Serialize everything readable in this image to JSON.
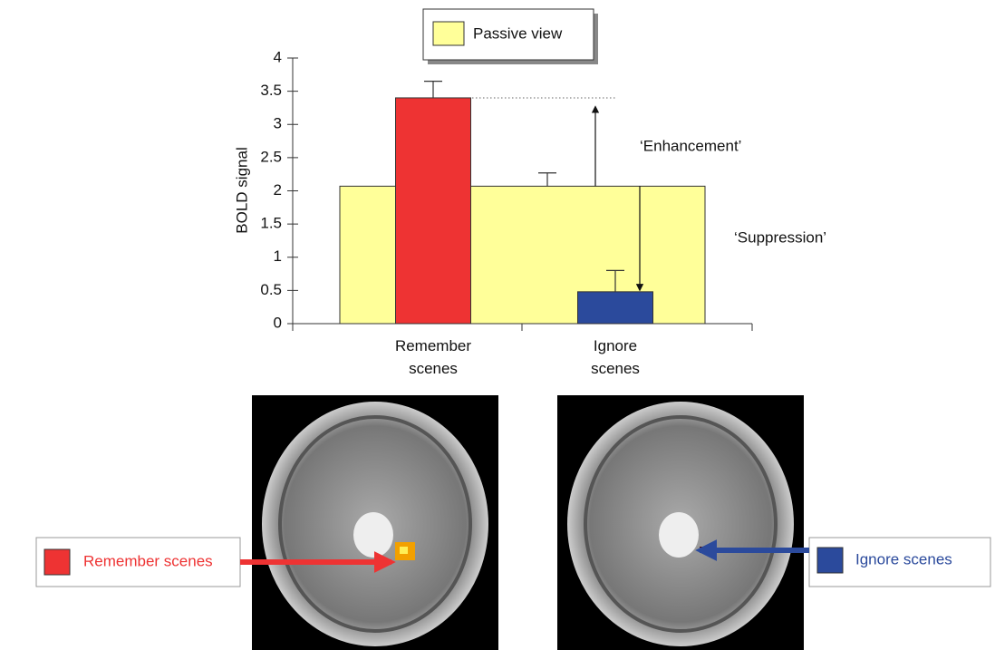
{
  "chart_data": {
    "type": "bar",
    "ylabel": "BOLD signal",
    "categories": [
      "Remember scenes",
      "Ignore scenes"
    ],
    "values": [
      3.4,
      0.48
    ],
    "errors": [
      0.25,
      0.32
    ],
    "colors": [
      "#ee3333",
      "#2b4a9c"
    ],
    "baseline": {
      "name": "Passive view",
      "value": 2.07,
      "error": 0.2,
      "color": "#ffff99"
    },
    "annotations": [
      "‘Enhancement’",
      "‘Suppression’"
    ],
    "ylim": [
      0,
      4
    ],
    "yticks": [
      0,
      0.5,
      1,
      1.5,
      2,
      2.5,
      3,
      3.5,
      4
    ]
  }
}
